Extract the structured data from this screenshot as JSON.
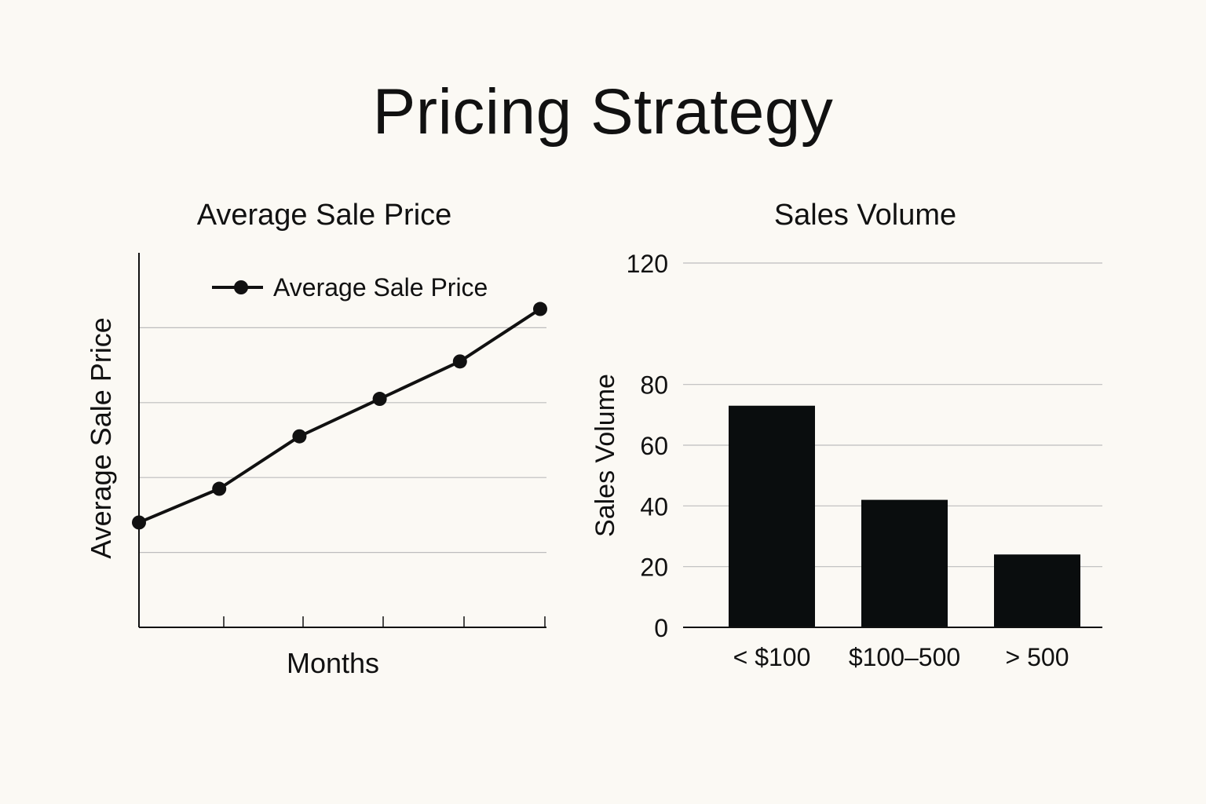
{
  "page": {
    "title": "Pricing Strategy"
  },
  "colors": {
    "background": "#fbf9f4",
    "ink": "#111111",
    "bar": "#0a0d0e",
    "grid": "#bdbdbd"
  },
  "chart_data": [
    {
      "type": "line",
      "title": "Average Sale Price",
      "xlabel": "Months",
      "ylabel": "Average Sale Price",
      "ylim": [
        0,
        100
      ],
      "grid": true,
      "legend": "top",
      "x": [
        0,
        1,
        2,
        3,
        4,
        5
      ],
      "series": [
        {
          "name": "Average Sale Price",
          "values": [
            28,
            37,
            51,
            61,
            71,
            85
          ]
        }
      ]
    },
    {
      "type": "bar",
      "title": "Sales Volume",
      "xlabel": "",
      "ylabel": "Sales Volume",
      "ylim": [
        0,
        120
      ],
      "yticks": [
        "0",
        "20",
        "40",
        "60",
        "80",
        "120"
      ],
      "grid": true,
      "categories": [
        "< $100",
        "$100–500",
        "> 500"
      ],
      "values": [
        73,
        42,
        24
      ]
    }
  ]
}
